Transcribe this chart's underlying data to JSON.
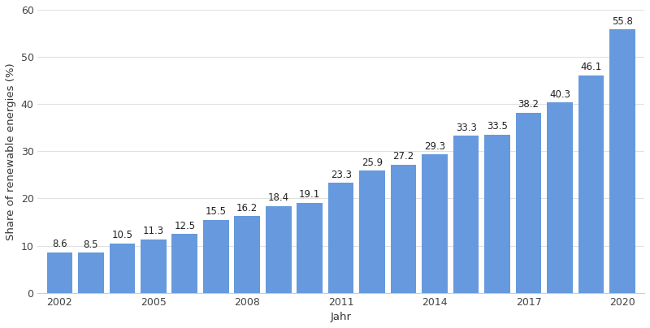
{
  "years": [
    2002,
    2003,
    2004,
    2005,
    2006,
    2007,
    2008,
    2009,
    2010,
    2011,
    2012,
    2013,
    2014,
    2015,
    2016,
    2017,
    2018,
    2019,
    2020
  ],
  "values": [
    8.6,
    8.5,
    10.5,
    11.3,
    12.5,
    15.5,
    16.2,
    18.4,
    19.1,
    23.3,
    25.9,
    27.2,
    29.3,
    33.3,
    33.5,
    38.2,
    40.3,
    46.1,
    55.8
  ],
  "bar_color": "#6699dd",
  "background_color": "#ffffff",
  "ylabel": "Share of renewable energies (%)",
  "xlabel": "Jahr",
  "ylim": [
    0,
    60
  ],
  "yticks": [
    0,
    10,
    20,
    30,
    40,
    50,
    60
  ],
  "xtick_years": [
    2002,
    2005,
    2008,
    2011,
    2014,
    2017,
    2020
  ],
  "label_fontsize": 8.5,
  "axis_label_fontsize": 9.5,
  "tick_fontsize": 9,
  "bar_width": 0.82
}
